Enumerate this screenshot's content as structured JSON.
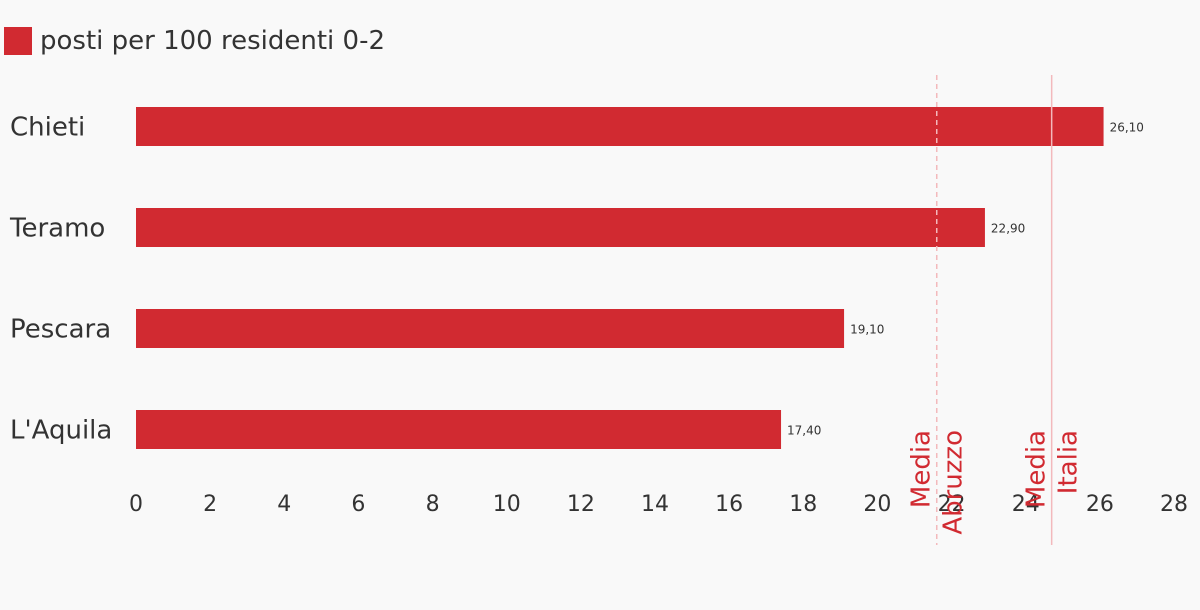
{
  "colors": {
    "bar": "#d12a31",
    "reference_line": "#f3b9bc",
    "reference_text": "#d12a31",
    "background": "#f9f9f9"
  },
  "chart_data": {
    "type": "bar",
    "orientation": "horizontal",
    "categories": [
      "Chieti",
      "Teramo",
      "Pescara",
      "L'Aquila"
    ],
    "series": [
      {
        "name": "posti per 100 residenti 0-2",
        "values": [
          26.1,
          22.9,
          19.1,
          17.4
        ]
      }
    ],
    "value_labels": [
      "26,10",
      "22,90",
      "19,10",
      "17,40"
    ],
    "xlim": [
      0,
      28
    ],
    "xticks": [
      0,
      2,
      4,
      6,
      8,
      10,
      12,
      14,
      16,
      18,
      20,
      22,
      24,
      26,
      28
    ],
    "legend_position": "top-left",
    "grid": false,
    "reference_lines": [
      {
        "value": 21.6,
        "label_lines": [
          "Media",
          "Abruzzo"
        ],
        "style": "dashed"
      },
      {
        "value": 24.7,
        "label_lines": [
          "Media",
          "Italia"
        ],
        "style": "solid"
      }
    ]
  }
}
